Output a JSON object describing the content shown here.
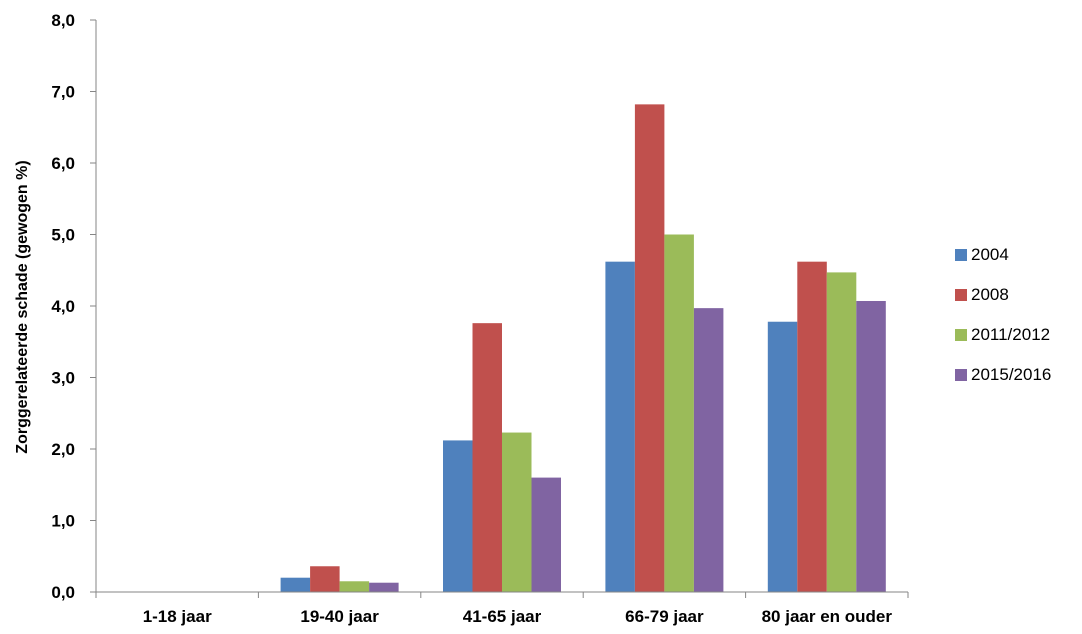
{
  "chart_data": {
    "type": "bar",
    "categories": [
      "1-18 jaar",
      "19-40 jaar",
      "41-65 jaar",
      "66-79 jaar",
      "80 jaar en ouder"
    ],
    "series": [
      {
        "name": "2004",
        "color": "#4F81BD",
        "values": [
          0.0,
          0.2,
          2.12,
          4.62,
          3.78
        ]
      },
      {
        "name": "2008",
        "color": "#C0504D",
        "values": [
          0.0,
          0.36,
          3.76,
          6.82,
          4.62
        ]
      },
      {
        "name": "2011/2012",
        "color": "#9BBB59",
        "values": [
          0.0,
          0.15,
          2.23,
          5.0,
          4.47
        ]
      },
      {
        "name": "2015/2016",
        "color": "#8064A2",
        "values": [
          0.0,
          0.13,
          1.6,
          3.97,
          4.07
        ]
      }
    ],
    "ylabel": "Zorggerelateerde schade (gewogen %)",
    "xlabel": "",
    "ylim": [
      0,
      8
    ],
    "yticks": [
      "0,0",
      "1,0",
      "2,0",
      "3,0",
      "4,0",
      "5,0",
      "6,0",
      "7,0",
      "8,0"
    ],
    "grid": false,
    "legend_position": "right"
  }
}
